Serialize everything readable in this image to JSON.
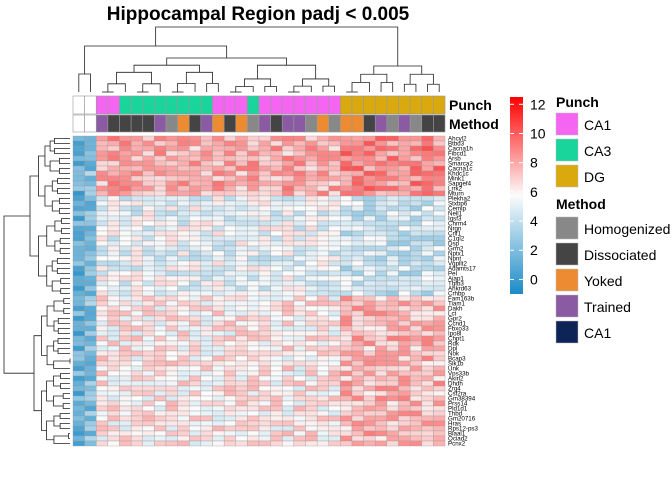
{
  "chart_data": {
    "type": "heatmap",
    "title": "Hippocampal Region padj < 0.005",
    "n_columns": 32,
    "column_annotations": {
      "Punch": [
        "",
        "",
        "CA1",
        "CA1",
        "CA3",
        "CA3",
        "CA3",
        "CA3",
        "CA3",
        "CA3",
        "CA3",
        "CA3",
        "CA1",
        "CA1",
        "CA1",
        "CA3",
        "CA1",
        "CA1",
        "CA1",
        "CA1",
        "CA1",
        "CA1",
        "CA1",
        "DG",
        "DG",
        "DG",
        "DG",
        "DG",
        "DG",
        "DG",
        "DG",
        "DG"
      ],
      "Method": [
        "",
        "",
        "Trained",
        "Dissociated",
        "Dissociated",
        "Dissociated",
        "Dissociated",
        "Trained",
        "Homogenized",
        "Yoked",
        "Dissociated",
        "Trained",
        "Yoked",
        "Dissociated",
        "Yoked",
        "Homogenized",
        "Trained",
        "Dissociated",
        "Trained",
        "Trained",
        "Homogenized",
        "Yoked",
        "Homogenized",
        "Yoked",
        "Yoked",
        "Dissociated",
        "Trained",
        "Homogenized",
        "Trained",
        "Homogenized",
        "Dissociated",
        "Dissociated"
      ]
    },
    "annotation_labels": {
      "punch": "Punch",
      "method": "Method"
    },
    "genes": [
      "Ahcyl2",
      "Btbd3",
      "Cacna1h",
      "Fibcd1",
      "Arsb",
      "Smarca2",
      "Cacna1c",
      "Khdc1c",
      "Mink1",
      "Sapgef4",
      "Lrrk2",
      "Mturn",
      "Plekha2",
      "Stxbp6",
      "Cemip",
      "Nell1",
      "Iqsf3",
      "Chrm4",
      "Nrgn",
      "Crlf1",
      "C1ql2",
      "Dsp",
      "Grm2",
      "Nptx1",
      "Npnt",
      "Vgpllt2",
      "Adamts17",
      "Pel",
      "Ajap1",
      "Tgfb3",
      "Ankrd63",
      "Crhbp",
      "Fam163b",
      "Tiam1",
      "Dakh",
      "Lct",
      "Gpr2",
      "Ccnd1",
      "Fbxo33",
      "Ipo8l",
      "Chpt1",
      "Rdk",
      "Dpl",
      "Nok",
      "Bcap3",
      "Slk1b",
      "Unk",
      "Vps33b",
      "Akirl2",
      "Dhdh",
      "Zrg4",
      "Csf2ra",
      "Gm38394",
      "Prss14",
      "Pld1d1",
      "Thbd",
      "Gm20716",
      "Hras",
      "Rps12-ps3",
      "Blaal1",
      "Ociad2",
      "Pcnx2"
    ],
    "colorbar": {
      "ticks": [
        0,
        2,
        4,
        6,
        8,
        10,
        12
      ],
      "min": -1,
      "max": 12.5
    },
    "colors": {
      "low": "#1a8bc7",
      "mid": "#fcfcfc",
      "high": "#ff0000",
      "cell_border": "#9a9a9a"
    },
    "clusters": {
      "upper_rows": 32,
      "lower_rows": 30,
      "col_groups": [
        2,
        21,
        9
      ]
    },
    "legends": {
      "punch": {
        "title": "Punch",
        "items": [
          {
            "label": "CA1",
            "color": "#f466f2"
          },
          {
            "label": "CA3",
            "color": "#1ad59b"
          },
          {
            "label": "DG",
            "color": "#d9a90e"
          }
        ]
      },
      "method": {
        "title": "Method",
        "items": [
          {
            "label": "Homogenized",
            "color": "#888888"
          },
          {
            "label": "Dissociated",
            "color": "#444444"
          },
          {
            "label": "Yoked",
            "color": "#ec8b31"
          },
          {
            "label": "Trained",
            "color": "#8a5aa3"
          },
          {
            "label": "CA1",
            "color": "#0d2457"
          }
        ]
      }
    }
  }
}
